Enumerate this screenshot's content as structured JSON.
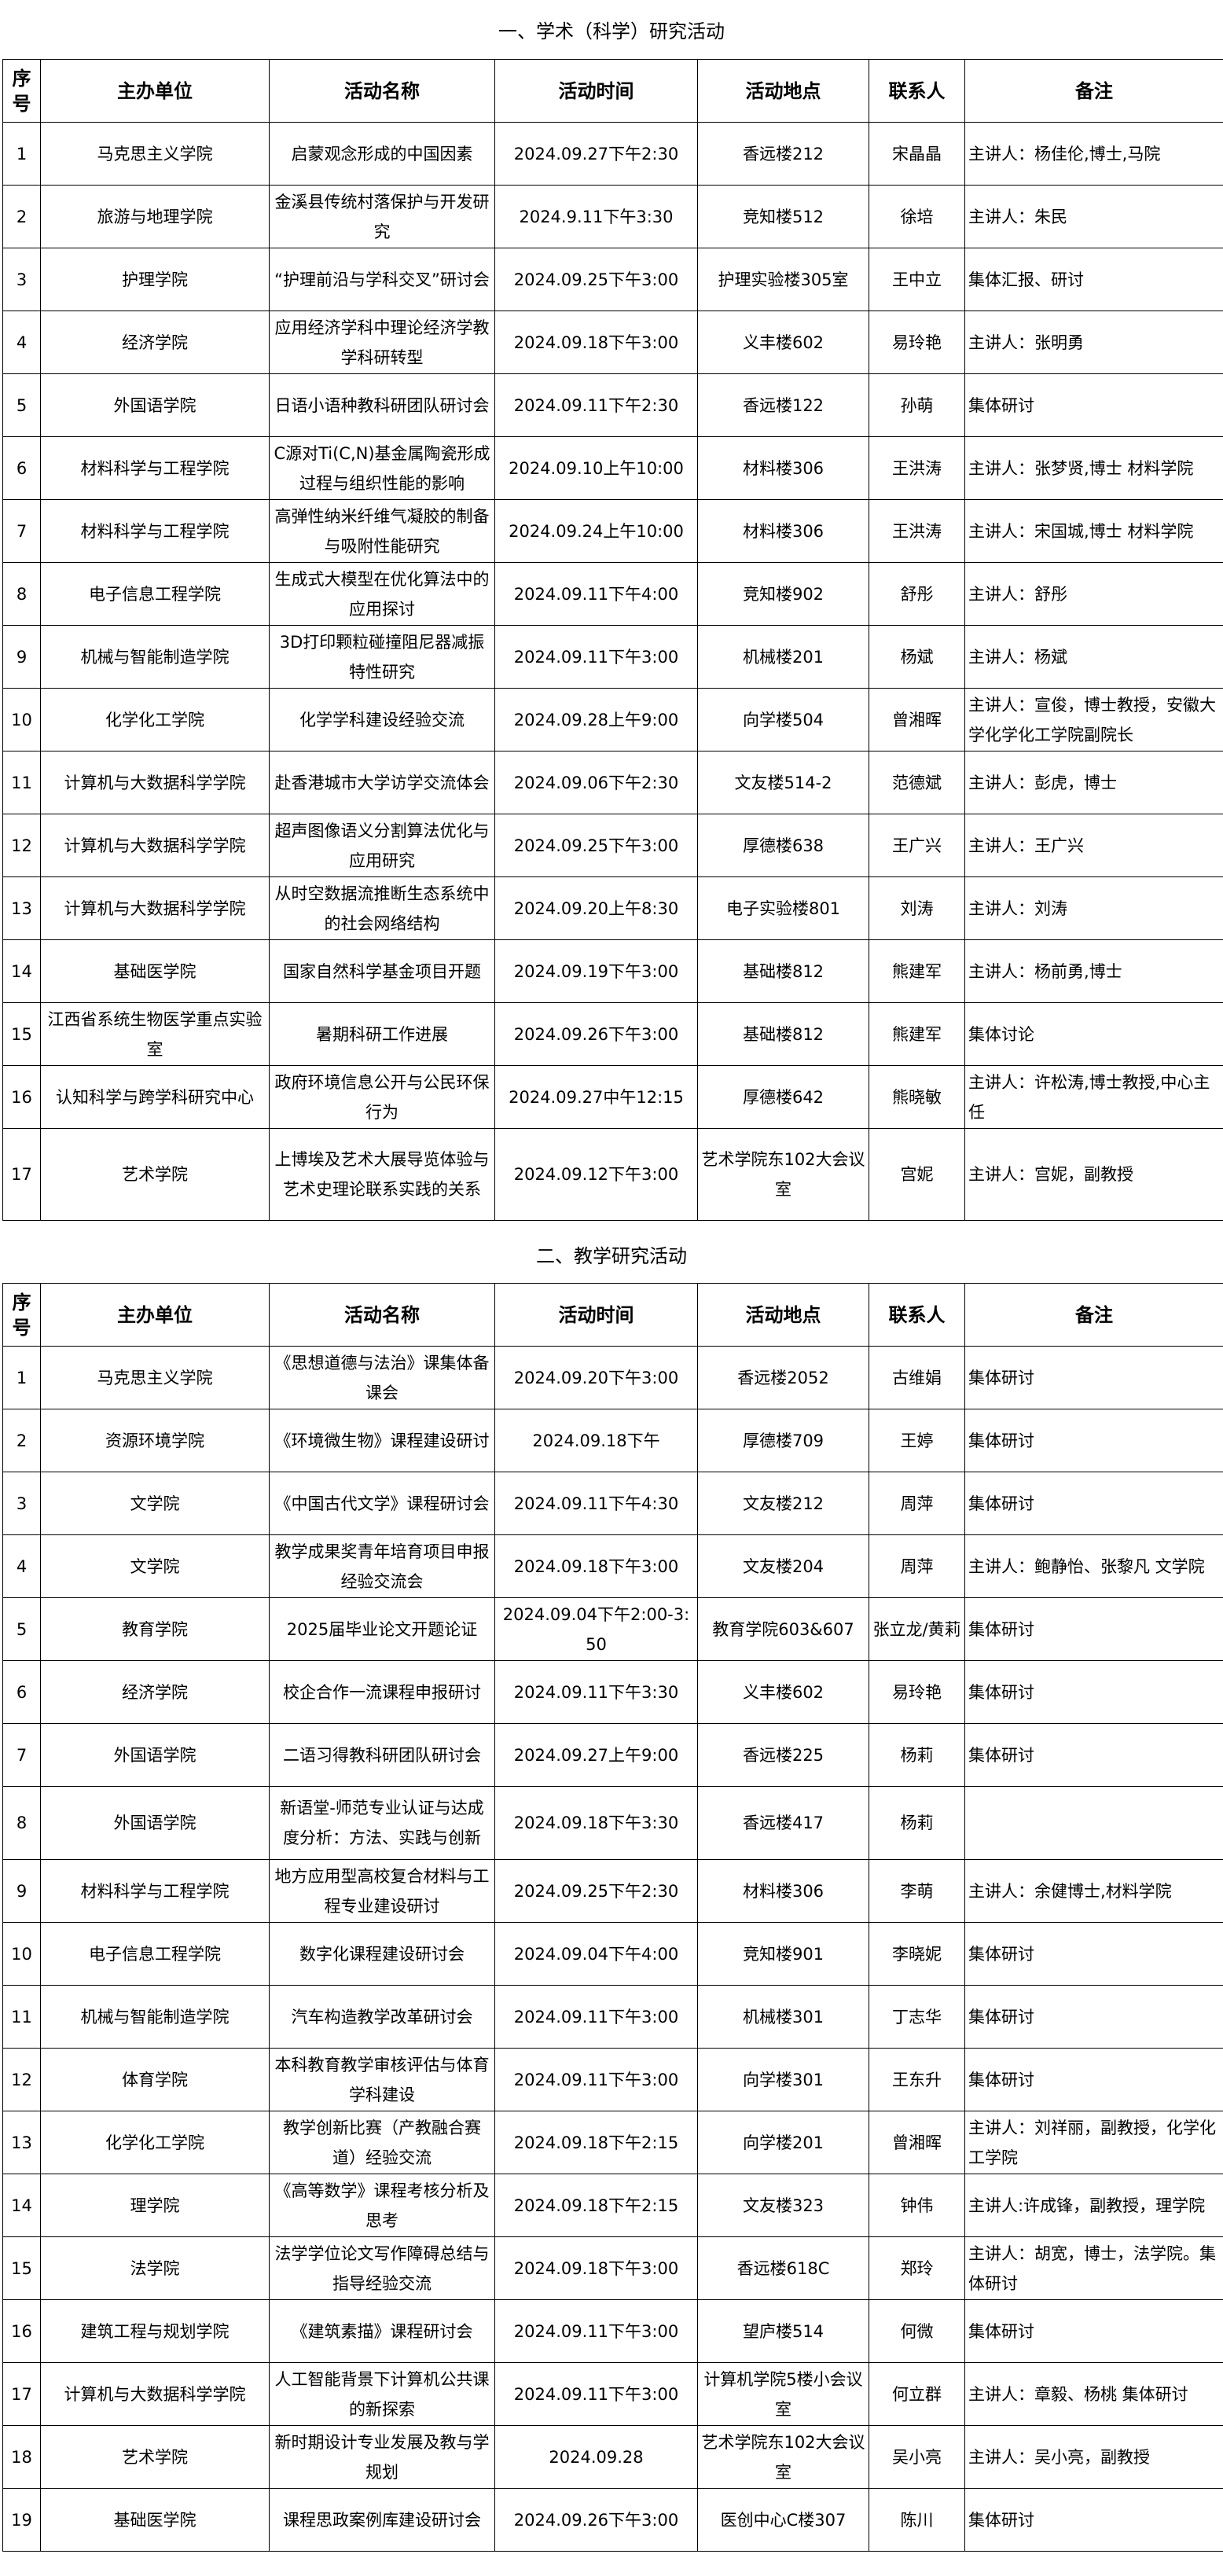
{
  "headers": [
    "序号",
    "主办单位",
    "活动名称",
    "活动时间",
    "活动地点",
    "联系人",
    "备注"
  ],
  "section1": {
    "title": "一、学术（科学）研究活动",
    "rows": [
      [
        "1",
        "马克思主义学院",
        "启蒙观念形成的中国因素",
        "2024.09.27下午2:30",
        "香远楼212",
        "宋晶晶",
        "主讲人：杨佳伦,博士,马院"
      ],
      [
        "2",
        "旅游与地理学院",
        "金溪县传统村落保护与开发研究",
        "2024.9.11下午3:30",
        "竞知楼512",
        "徐培",
        "主讲人：朱民"
      ],
      [
        "3",
        "护理学院",
        "“护理前沿与学科交叉”研讨会",
        "2024.09.25下午3:00",
        "护理实验楼305室",
        "王中立",
        "集体汇报、研讨"
      ],
      [
        "4",
        "经济学院",
        "应用经济学科中理论经济学教学科研转型",
        "2024.09.18下午3:00",
        "义丰楼602",
        "易玲艳",
        "主讲人：张明勇"
      ],
      [
        "5",
        "外国语学院",
        "日语小语种教科研团队研讨会",
        "2024.09.11下午2:30",
        "香远楼122",
        "孙萌",
        "集体研讨"
      ],
      [
        "6",
        "材料科学与工程学院",
        "C源对Ti(C,N)基金属陶瓷形成过程与组织性能的影响",
        "2024.09.10上午10:00",
        "材料楼306",
        "王洪涛",
        "主讲人：张梦贤,博士 材料学院"
      ],
      [
        "7",
        "材料科学与工程学院",
        "高弹性纳米纤维气凝胶的制备与吸附性能研究",
        "2024.09.24上午10:00",
        "材料楼306",
        "王洪涛",
        "主讲人：宋国城,博士 材料学院"
      ],
      [
        "8",
        "电子信息工程学院",
        "生成式大模型在优化算法中的应用探讨",
        "2024.09.11下午4:00",
        "竞知楼902",
        "舒彤",
        "主讲人：舒彤"
      ],
      [
        "9",
        "机械与智能制造学院",
        "3D打印颗粒碰撞阻尼器减振特性研究",
        "2024.09.11下午3:00",
        "机械楼201",
        "杨斌",
        "主讲人：杨斌"
      ],
      [
        "10",
        "化学化工学院",
        "化学学科建设经验交流",
        "2024.09.28上午9:00",
        "向学楼504",
        "曾湘晖",
        "主讲人：宣俊，博士教授，安徽大学化学化工学院副院长"
      ],
      [
        "11",
        "计算机与大数据科学学院",
        "赴香港城市大学访学交流体会",
        "2024.09.06下午2:30",
        "文友楼514-2",
        "范德斌",
        "主讲人：彭虎，博士"
      ],
      [
        "12",
        "计算机与大数据科学学院",
        "超声图像语义分割算法优化与应用研究",
        "2024.09.25下午3:00",
        "厚德楼638",
        "王广兴",
        "主讲人：王广兴"
      ],
      [
        "13",
        "计算机与大数据科学学院",
        "从时空数据流推断生态系统中的社会网络结构",
        "2024.09.20上午8:30",
        "电子实验楼801",
        "刘涛",
        "主讲人：刘涛"
      ],
      [
        "14",
        "基础医学院",
        "国家自然科学基金项目开题",
        "2024.09.19下午3:00",
        "基础楼812",
        "熊建军",
        "主讲人：杨前勇,博士"
      ],
      [
        "15",
        "江西省系统生物医学重点实验室",
        "暑期科研工作进展",
        "2024.09.26下午3:00",
        "基础楼812",
        "熊建军",
        "集体讨论"
      ],
      [
        "16",
        "认知科学与跨学科研究中心",
        "政府环境信息公开与公民环保行为",
        "2024.09.27中午12:15",
        "厚德楼642",
        "熊晓敏",
        "主讲人：许松涛,博士教授,中心主任"
      ],
      [
        "17",
        "艺术学院",
        "上博埃及艺术大展导览体验与艺术史理论联系实践的关系",
        "2024.09.12下午3:00",
        "艺术学院东102大会议室",
        "宫妮",
        "主讲人：宫妮，副教授"
      ]
    ]
  },
  "section2": {
    "title": "二、教学研究活动",
    "rows": [
      [
        "1",
        "马克思主义学院",
        "《思想道德与法治》课集体备课会",
        "2024.09.20下午3:00",
        "香远楼2052",
        "古维娟",
        "集体研讨"
      ],
      [
        "2",
        "资源环境学院",
        "《环境微生物》课程建设研讨",
        "2024.09.18下午",
        "厚德楼709",
        "王婷",
        "集体研讨"
      ],
      [
        "3",
        "文学院",
        "《中国古代文学》课程研讨会",
        "2024.09.11下午4:30",
        "文友楼212",
        "周萍",
        "集体研讨"
      ],
      [
        "4",
        "文学院",
        "教学成果奖青年培育项目申报经验交流会",
        "2024.09.18下午3:00",
        "文友楼204",
        "周萍",
        "主讲人：鲍静怡、张黎凡 文学院"
      ],
      [
        "5",
        "教育学院",
        "2025届毕业论文开题论证",
        "2024.09.04下午2:00-3:50",
        "教育学院603&607",
        "张立龙/黄莉",
        "集体研讨"
      ],
      [
        "6",
        "经济学院",
        "校企合作一流课程申报研讨",
        "2024.09.11下午3:30",
        "义丰楼602",
        "易玲艳",
        "集体研讨"
      ],
      [
        "7",
        "外国语学院",
        "二语习得教科研团队研讨会",
        "2024.09.27上午9:00",
        "香远楼225",
        "杨莉",
        "集体研讨"
      ],
      [
        "8",
        "外国语学院",
        "新语堂-师范专业认证与达成度分析：方法、实践与创新",
        "2024.09.18下午3:30",
        "香远楼417",
        "杨莉",
        ""
      ],
      [
        "9",
        "材料科学与工程学院",
        "地方应用型高校复合材料与工程专业建设研讨",
        "2024.09.25下午2:30",
        "材料楼306",
        "李萌",
        "主讲人：余健博士,材料学院"
      ],
      [
        "10",
        "电子信息工程学院",
        "数字化课程建设研讨会",
        "2024.09.04下午4:00",
        "竞知楼901",
        "李晓妮",
        "集体研讨"
      ],
      [
        "11",
        "机械与智能制造学院",
        "汽车构造教学改革研讨会",
        "2024.09.11下午3:00",
        "机械楼301",
        "丁志华",
        "集体研讨"
      ],
      [
        "12",
        "体育学院",
        "本科教育教学审核评估与体育学科建设",
        "2024.09.11下午3:00",
        "向学楼301",
        "王东升",
        "集体研讨"
      ],
      [
        "13",
        "化学化工学院",
        "教学创新比赛（产教融合赛道）经验交流",
        "2024.09.18下午2:15",
        "向学楼201",
        "曾湘晖",
        "主讲人：刘祥丽，副教授，化学化工学院"
      ],
      [
        "14",
        "理学院",
        "《高等数学》课程考核分析及思考",
        "2024.09.18下午2:15",
        "文友楼323",
        "钟伟",
        "主讲人:许成锋，副教授，理学院"
      ],
      [
        "15",
        "法学院",
        "法学学位论文写作障碍总结与指导经验交流",
        "2024.09.18下午3:00",
        "香远楼618C",
        "郑玲",
        "主讲人：胡宽，博士，法学院。集体研讨"
      ],
      [
        "16",
        "建筑工程与规划学院",
        "《建筑素描》课程研讨会",
        "2024.09.11下午3:00",
        "望庐楼514",
        "何微",
        "集体研讨"
      ],
      [
        "17",
        "计算机与大数据科学学院",
        "人工智能背景下计算机公共课的新探索",
        "2024.09.11下午3:00",
        "计算机学院5楼小会议室",
        "何立群",
        "主讲人：章毅、杨桃 集体研讨"
      ],
      [
        "18",
        "艺术学院",
        "新时期设计专业发展及教与学规划",
        "2024.09.28",
        "艺术学院东102大会议室",
        "吴小亮",
        "主讲人：吴小亮，副教授"
      ],
      [
        "19",
        "基础医学院",
        "课程思政案例库建设研讨会",
        "2024.09.26下午3:00",
        "医创中心C楼307",
        "陈川",
        "集体研讨"
      ]
    ]
  }
}
